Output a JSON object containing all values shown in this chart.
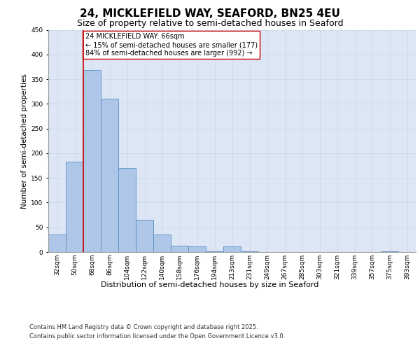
{
  "title1": "24, MICKLEFIELD WAY, SEAFORD, BN25 4EU",
  "title2": "Size of property relative to semi-detached houses in Seaford",
  "xlabel": "Distribution of semi-detached houses by size in Seaford",
  "ylabel": "Number of semi-detached properties",
  "categories": [
    "32sqm",
    "50sqm",
    "68sqm",
    "86sqm",
    "104sqm",
    "122sqm",
    "140sqm",
    "158sqm",
    "176sqm",
    "194sqm",
    "213sqm",
    "231sqm",
    "249sqm",
    "267sqm",
    "285sqm",
    "303sqm",
    "321sqm",
    "339sqm",
    "357sqm",
    "375sqm",
    "393sqm"
  ],
  "values": [
    35,
    183,
    368,
    310,
    170,
    65,
    35,
    13,
    11,
    1,
    12,
    1,
    0,
    0,
    0,
    0,
    0,
    0,
    0,
    1,
    0
  ],
  "bar_color": "#aec6e8",
  "bar_edge_color": "#5a8fc4",
  "property_line_x": 1.5,
  "annotation_text": "24 MICKLEFIELD WAY: 66sqm\n← 15% of semi-detached houses are smaller (177)\n84% of semi-detached houses are larger (992) →",
  "annotation_box_color": "#ffffff",
  "annotation_box_edge_color": "#cc0000",
  "vline_color": "#cc0000",
  "ylim": [
    0,
    450
  ],
  "yticks": [
    0,
    50,
    100,
    150,
    200,
    250,
    300,
    350,
    400,
    450
  ],
  "grid_color": "#c8d4e8",
  "background_color": "#dce6f5",
  "footnote1": "Contains HM Land Registry data © Crown copyright and database right 2025.",
  "footnote2": "Contains public sector information licensed under the Open Government Licence v3.0.",
  "title1_fontsize": 11,
  "title2_fontsize": 9,
  "annotation_fontsize": 7,
  "ylabel_fontsize": 7.5,
  "xlabel_fontsize": 8,
  "tick_fontsize": 6.5,
  "footnote_fontsize": 6
}
